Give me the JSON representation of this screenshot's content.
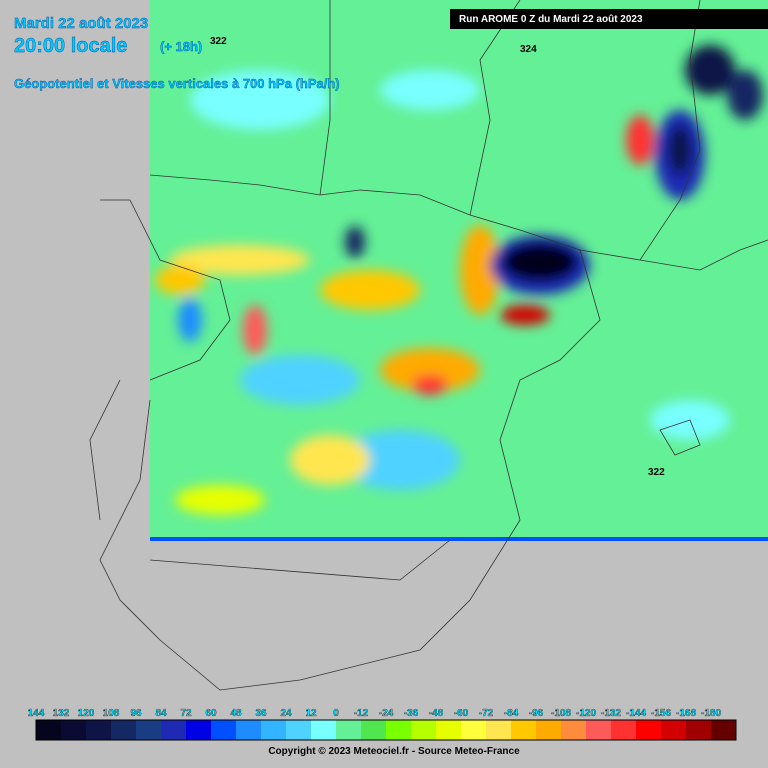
{
  "header": {
    "date": "Mardi 22 août 2023",
    "time": "20:00 locale",
    "lead": "(+ 18h)",
    "subtitle": "Géopotentiel et Vitesses verticales à 700 hPa (hPa/h)",
    "run": "Run AROME 0 Z du Mardi 22 août 2023"
  },
  "map": {
    "contour_labels": [
      "322",
      "324",
      "322"
    ]
  },
  "legend": {
    "labels": [
      144,
      132,
      120,
      108,
      96,
      84,
      72,
      60,
      48,
      36,
      24,
      12,
      0,
      -12,
      -24,
      -36,
      -48,
      -60,
      -72,
      -84,
      -96,
      -108,
      -120,
      -132,
      -144,
      -156,
      -168,
      -180
    ],
    "colors": [
      "#05051e",
      "#0a0a32",
      "#0f1446",
      "#142864",
      "#193c82",
      "#1e2ab4",
      "#0000e6",
      "#0050ff",
      "#1e8cff",
      "#32b4ff",
      "#50d2ff",
      "#78ffff",
      "#64f096",
      "#50e650",
      "#78ff00",
      "#b4ff00",
      "#e6ff00",
      "#ffff3c",
      "#ffe650",
      "#ffc800",
      "#ffaa00",
      "#ff8c3c",
      "#ff5a5a",
      "#ff3232",
      "#ff0000",
      "#d20000",
      "#a00000",
      "#640000"
    ]
  },
  "footer": {
    "copyright": "Copyright © 2023 Meteociel.fr - Source Meteo-France"
  }
}
